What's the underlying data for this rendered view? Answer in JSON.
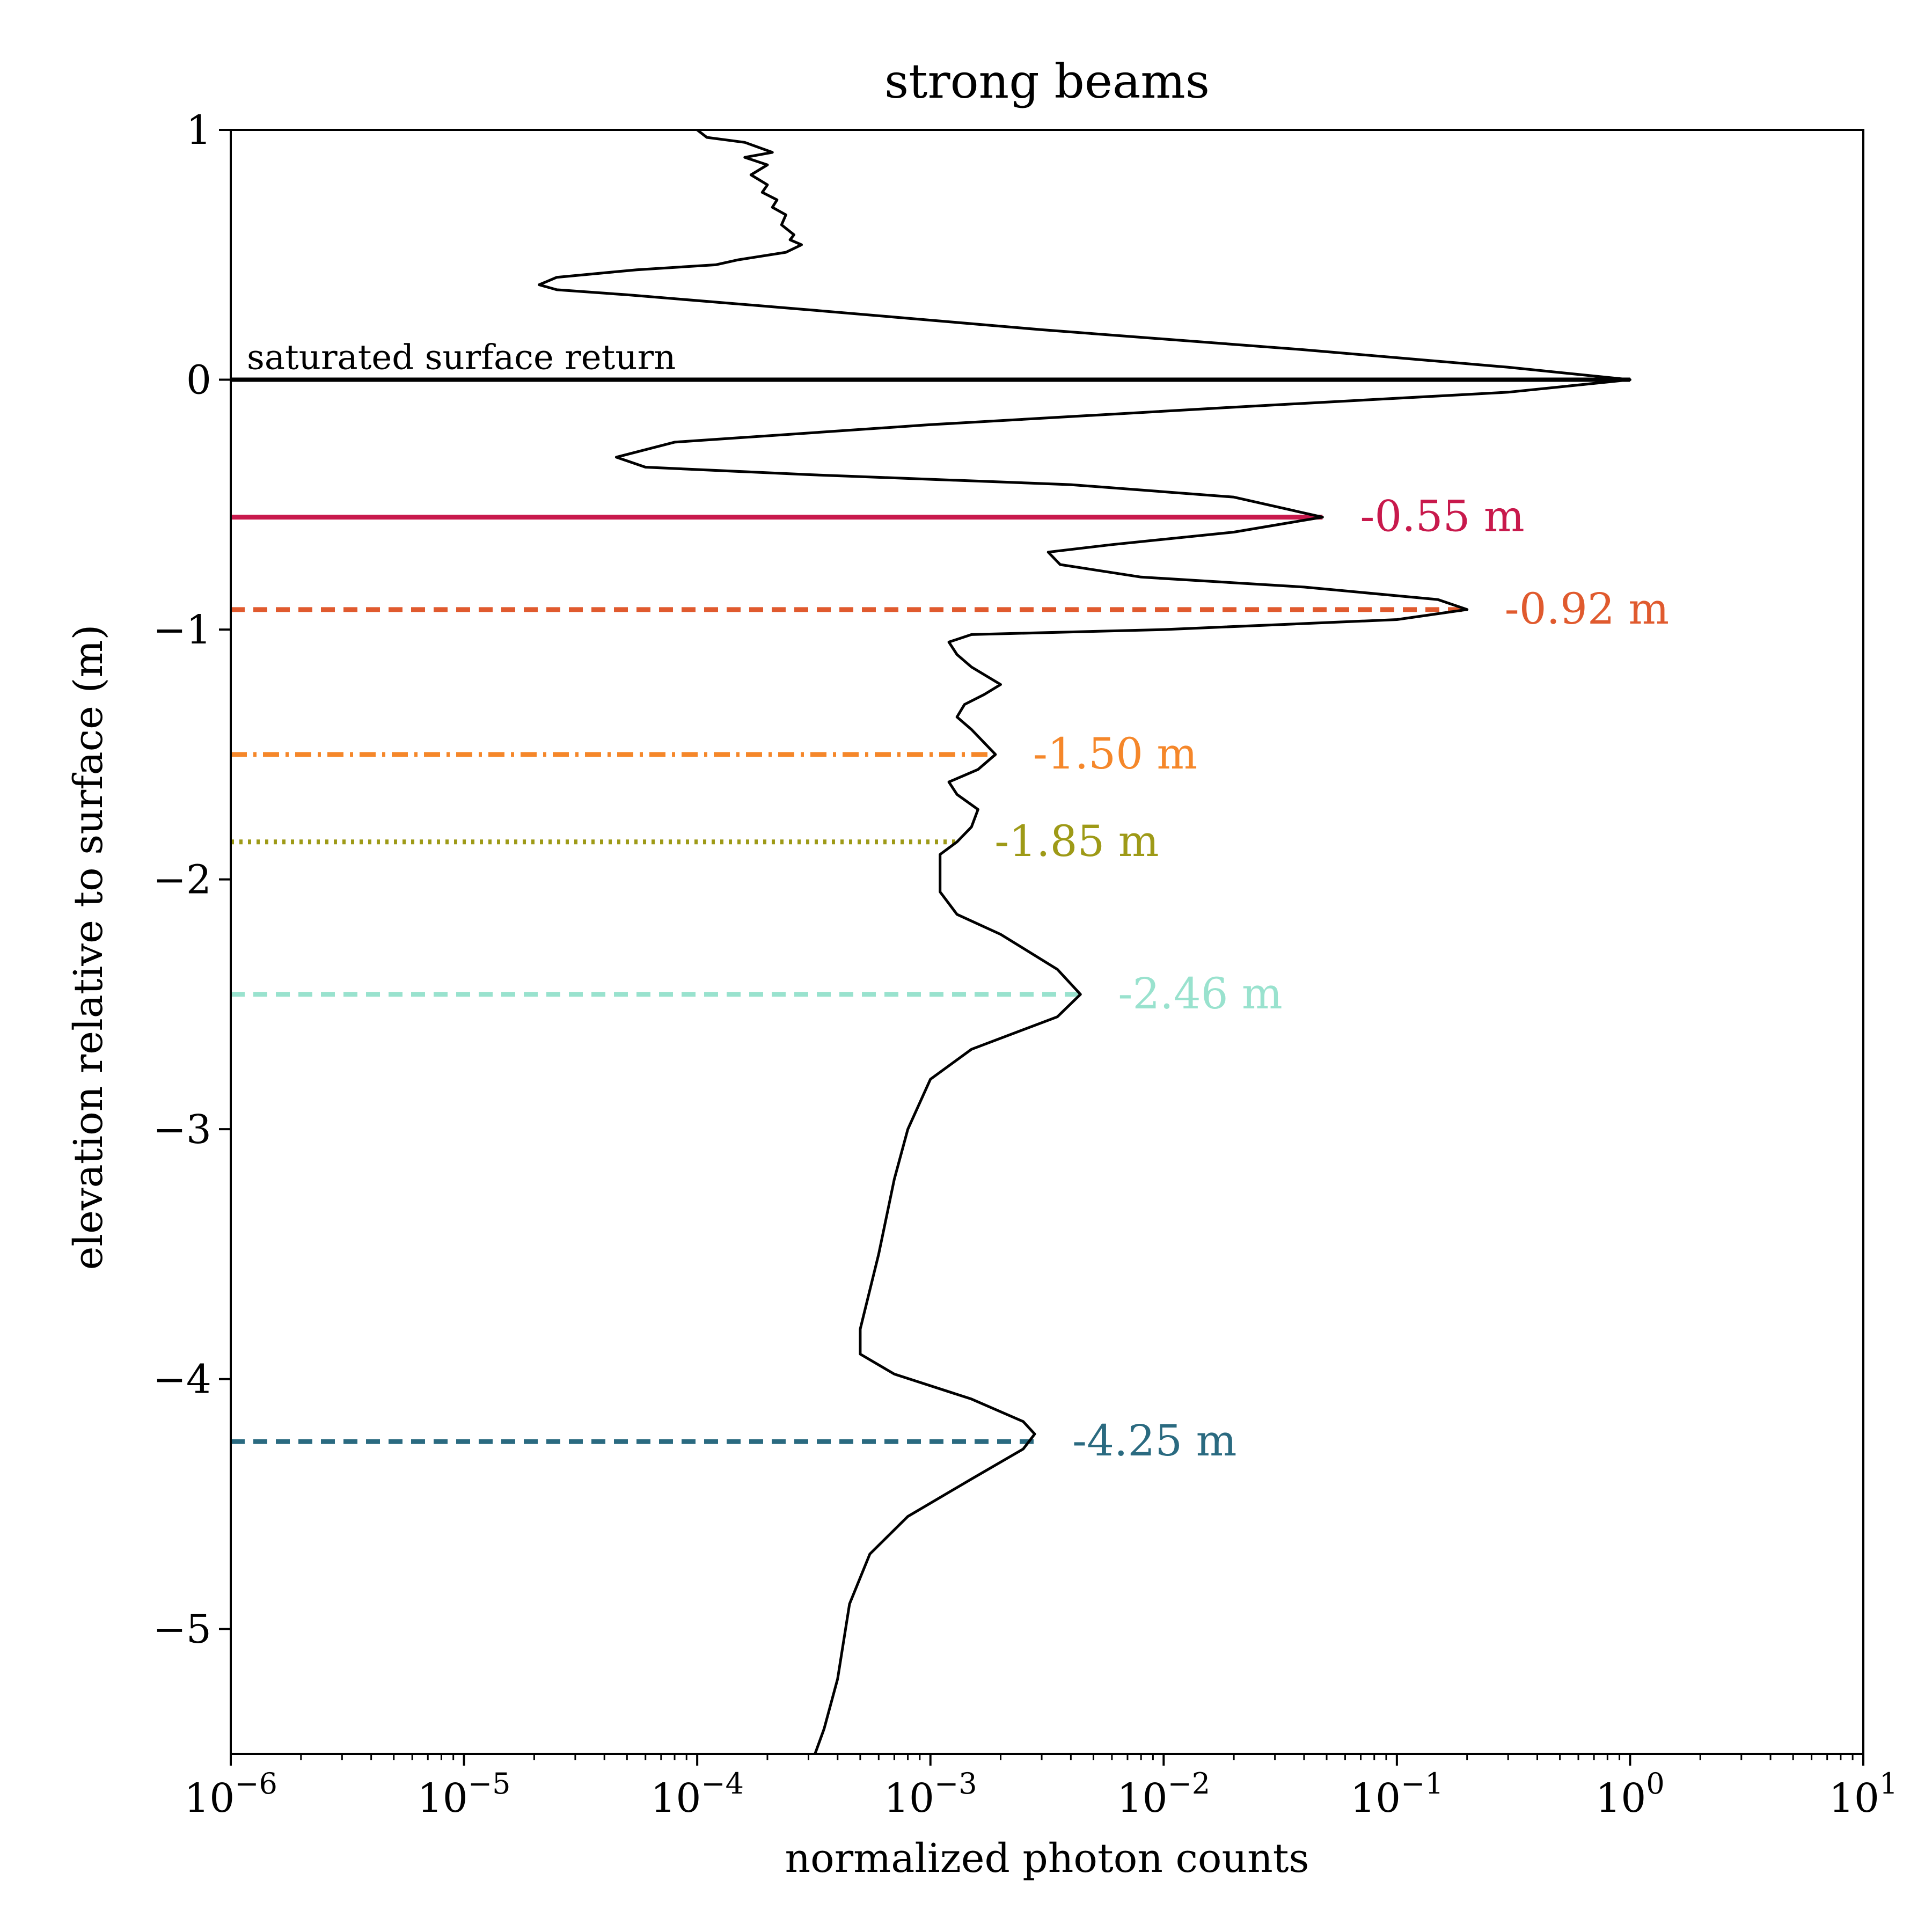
{
  "chart_data": {
    "type": "line",
    "title": "strong beams",
    "xlabel": "normalized photon counts",
    "ylabel": "elevation relative to surface (m)",
    "xscale": "log",
    "xlim": [
      1e-06,
      10
    ],
    "ylim": [
      -5.5,
      1
    ],
    "xticks": [
      {
        "value": 1e-06,
        "base": "10",
        "exp": "−6"
      },
      {
        "value": 1e-05,
        "base": "10",
        "exp": "−5"
      },
      {
        "value": 0.0001,
        "base": "10",
        "exp": "−4"
      },
      {
        "value": 0.001,
        "base": "10",
        "exp": "−3"
      },
      {
        "value": 0.01,
        "base": "10",
        "exp": "−2"
      },
      {
        "value": 0.1,
        "base": "10",
        "exp": "−1"
      },
      {
        "value": 1,
        "base": "10",
        "exp": "0"
      },
      {
        "value": 10,
        "base": "10",
        "exp": "1"
      }
    ],
    "yticks": [
      {
        "value": 1,
        "label": "1"
      },
      {
        "value": 0,
        "label": "0"
      },
      {
        "value": -1,
        "label": "−1"
      },
      {
        "value": -2,
        "label": "−2"
      },
      {
        "value": -3,
        "label": "−3"
      },
      {
        "value": -4,
        "label": "−4"
      },
      {
        "value": -5,
        "label": "−5"
      }
    ],
    "grid": false,
    "profile": {
      "color": "#000000",
      "points": [
        [
          0.0001,
          1.0
        ],
        [
          0.00011,
          0.97
        ],
        [
          0.00016,
          0.95
        ],
        [
          0.00021,
          0.91
        ],
        [
          0.00016,
          0.89
        ],
        [
          0.0002,
          0.86
        ],
        [
          0.00017,
          0.82
        ],
        [
          0.0002,
          0.78
        ],
        [
          0.00019,
          0.75
        ],
        [
          0.00022,
          0.72
        ],
        [
          0.00021,
          0.69
        ],
        [
          0.00024,
          0.66
        ],
        [
          0.00023,
          0.62
        ],
        [
          0.00026,
          0.58
        ],
        [
          0.00025,
          0.56
        ],
        [
          0.00028,
          0.54
        ],
        [
          0.00024,
          0.51
        ],
        [
          0.00015,
          0.48
        ],
        [
          0.00012,
          0.46
        ],
        [
          5.5e-05,
          0.44
        ],
        [
          2.5e-05,
          0.41
        ],
        [
          2.1e-05,
          0.38
        ],
        [
          2.5e-05,
          0.36
        ],
        [
          5e-05,
          0.34
        ],
        [
          0.0003,
          0.28
        ],
        [
          0.003,
          0.2
        ],
        [
          0.04,
          0.12
        ],
        [
          0.3,
          0.05
        ],
        [
          1.0,
          0.0
        ],
        [
          0.3,
          -0.05
        ],
        [
          0.02,
          -0.11
        ],
        [
          0.001,
          -0.18
        ],
        [
          8e-05,
          -0.25
        ],
        [
          4.5e-05,
          -0.31
        ],
        [
          6e-05,
          -0.35
        ],
        [
          0.0003,
          -0.38
        ],
        [
          0.004,
          -0.42
        ],
        [
          0.02,
          -0.47
        ],
        [
          0.048,
          -0.55
        ],
        [
          0.02,
          -0.61
        ],
        [
          0.006,
          -0.66
        ],
        [
          0.0032,
          -0.69
        ],
        [
          0.0036,
          -0.74
        ],
        [
          0.008,
          -0.79
        ],
        [
          0.04,
          -0.83
        ],
        [
          0.15,
          -0.88
        ],
        [
          0.2,
          -0.92
        ],
        [
          0.1,
          -0.96
        ],
        [
          0.01,
          -1.0
        ],
        [
          0.0015,
          -1.02
        ],
        [
          0.0012,
          -1.05
        ],
        [
          0.0013,
          -1.1
        ],
        [
          0.0015,
          -1.15
        ],
        [
          0.002,
          -1.22
        ],
        [
          0.0017,
          -1.26
        ],
        [
          0.0014,
          -1.3
        ],
        [
          0.0013,
          -1.35
        ],
        [
          0.0015,
          -1.4
        ],
        [
          0.0019,
          -1.5
        ],
        [
          0.0016,
          -1.56
        ],
        [
          0.0012,
          -1.61
        ],
        [
          0.0013,
          -1.66
        ],
        [
          0.0016,
          -1.72
        ],
        [
          0.0015,
          -1.79
        ],
        [
          0.0013,
          -1.85
        ],
        [
          0.0011,
          -1.9
        ],
        [
          0.0011,
          -2.05
        ],
        [
          0.0013,
          -2.14
        ],
        [
          0.002,
          -2.22
        ],
        [
          0.0035,
          -2.36
        ],
        [
          0.0044,
          -2.46
        ],
        [
          0.0035,
          -2.55
        ],
        [
          0.0015,
          -2.68
        ],
        [
          0.001,
          -2.8
        ],
        [
          0.0008,
          -3.0
        ],
        [
          0.0007,
          -3.2
        ],
        [
          0.0006,
          -3.5
        ],
        [
          0.0005,
          -3.8
        ],
        [
          0.0005,
          -3.9
        ],
        [
          0.0007,
          -3.98
        ],
        [
          0.0015,
          -4.08
        ],
        [
          0.0025,
          -4.17
        ],
        [
          0.0028,
          -4.22
        ],
        [
          0.0025,
          -4.28
        ],
        [
          0.0015,
          -4.4
        ],
        [
          0.0008,
          -4.55
        ],
        [
          0.00055,
          -4.7
        ],
        [
          0.00045,
          -4.9
        ],
        [
          0.0004,
          -5.2
        ],
        [
          0.00035,
          -5.4
        ],
        [
          0.00032,
          -5.5
        ]
      ]
    },
    "surface_line": {
      "y": 0,
      "x_end": 1.0,
      "color": "#000000",
      "label": "saturated surface return"
    },
    "annotations": [
      {
        "y": -0.55,
        "x_end": 0.048,
        "label": "-0.55 m",
        "color": "#C8194C",
        "style": "solid"
      },
      {
        "y": -0.92,
        "x_end": 0.2,
        "label": "-0.92 m",
        "color": "#E05A2E",
        "style": "dashed"
      },
      {
        "y": -1.5,
        "x_end": 0.0019,
        "label": "-1.50 m",
        "color": "#F5872A",
        "style": "dashdot"
      },
      {
        "y": -1.85,
        "x_end": 0.0013,
        "label": "-1.85 m",
        "color": "#9E9A17",
        "style": "dotted"
      },
      {
        "y": -2.46,
        "x_end": 0.0044,
        "label": "-2.46 m",
        "color": "#99E2CE",
        "style": "dashed"
      },
      {
        "y": -4.25,
        "x_end": 0.0028,
        "label": "-4.25 m",
        "color": "#2A6A80",
        "style": "dashed"
      }
    ]
  }
}
